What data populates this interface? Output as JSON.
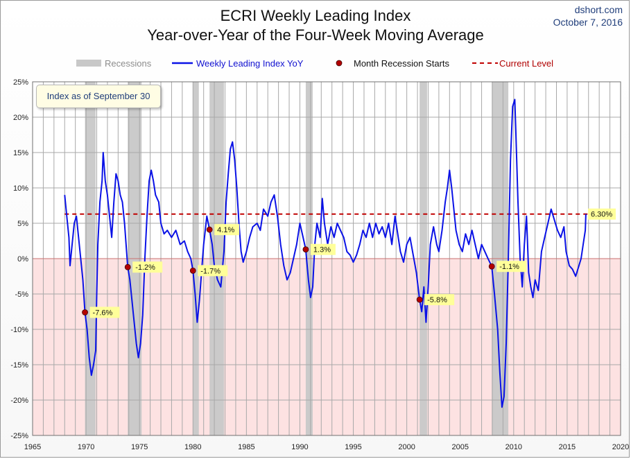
{
  "header": {
    "title_line1": "ECRI Weekly Leading Index",
    "title_line2": "Year-over-Year of the Four-Week Moving Average",
    "source_site": "dshort.com",
    "source_date": "October 7, 2016"
  },
  "info_box": "Index as of September 30",
  "colors": {
    "line": "#0a12e6",
    "recession": "#c8c8c8",
    "negative_zone": "#fde2e2",
    "marker": "#b30000",
    "current_level": "#c00000",
    "label_bg": "#ffff99"
  },
  "chart_data": {
    "type": "line",
    "title": "ECRI Weekly Leading Index — Year-over-Year of the Four-Week Moving Average",
    "xlim": [
      1965,
      2020
    ],
    "ylim": [
      -25,
      25
    ],
    "x_ticks": [
      "1965",
      "1970",
      "1975",
      "1980",
      "1985",
      "1990",
      "1995",
      "2000",
      "2005",
      "2010",
      "2015",
      "2020"
    ],
    "y_ticks": [
      "25%",
      "20%",
      "15%",
      "10%",
      "5%",
      "0%",
      "-5%",
      "-10%",
      "-15%",
      "-20%",
      "-25%"
    ],
    "grid": true,
    "legend": {
      "position": "top",
      "recessions": "Recessions",
      "series": "Weekly Leading Index YoY",
      "markers": "Month Recession Starts",
      "current": "Current Level"
    },
    "recessions": [
      [
        1969.9,
        1970.9
      ],
      [
        1973.9,
        1975.2
      ],
      [
        1980.0,
        1980.55
      ],
      [
        1981.55,
        1982.9
      ],
      [
        1990.55,
        1991.2
      ],
      [
        2001.2,
        2001.9
      ],
      [
        2007.95,
        2009.5
      ]
    ],
    "recession_starts": [
      {
        "x": 1969.9,
        "y": -7.6,
        "label": "-7.6%"
      },
      {
        "x": 1973.9,
        "y": -1.2,
        "label": "-1.2%"
      },
      {
        "x": 1980.0,
        "y": -1.7,
        "label": "-1.7%"
      },
      {
        "x": 1981.55,
        "y": 4.1,
        "label": "4.1%"
      },
      {
        "x": 1990.55,
        "y": 1.3,
        "label": "1.3%"
      },
      {
        "x": 2001.2,
        "y": -5.8,
        "label": "-5.8%"
      },
      {
        "x": 2007.95,
        "y": -1.1,
        "label": "-1.1%"
      }
    ],
    "current_level": {
      "value": 6.3,
      "label": "6.30%"
    },
    "series": [
      {
        "name": "Weekly Leading Index YoY",
        "points": [
          [
            1968.0,
            9.0
          ],
          [
            1968.2,
            6.0
          ],
          [
            1968.4,
            3.0
          ],
          [
            1968.5,
            -1.0
          ],
          [
            1968.7,
            2.0
          ],
          [
            1968.9,
            5.0
          ],
          [
            1969.1,
            6.0
          ],
          [
            1969.3,
            3.0
          ],
          [
            1969.5,
            0.0
          ],
          [
            1969.7,
            -3.0
          ],
          [
            1969.9,
            -7.6
          ],
          [
            1970.1,
            -10.0
          ],
          [
            1970.3,
            -14.0
          ],
          [
            1970.5,
            -16.5
          ],
          [
            1970.7,
            -15.0
          ],
          [
            1970.9,
            -13.0
          ],
          [
            1971.0,
            -5.0
          ],
          [
            1971.1,
            2.0
          ],
          [
            1971.3,
            8.0
          ],
          [
            1971.5,
            11.0
          ],
          [
            1971.6,
            15.0
          ],
          [
            1971.8,
            11.0
          ],
          [
            1972.0,
            9.0
          ],
          [
            1972.2,
            6.0
          ],
          [
            1972.4,
            3.0
          ],
          [
            1972.6,
            8.0
          ],
          [
            1972.8,
            12.0
          ],
          [
            1973.0,
            11.0
          ],
          [
            1973.2,
            9.0
          ],
          [
            1973.4,
            8.0
          ],
          [
            1973.6,
            5.0
          ],
          [
            1973.9,
            -1.2
          ],
          [
            1974.1,
            -3.0
          ],
          [
            1974.3,
            -6.0
          ],
          [
            1974.5,
            -9.0
          ],
          [
            1974.7,
            -12.0
          ],
          [
            1974.9,
            -14.0
          ],
          [
            1975.1,
            -12.0
          ],
          [
            1975.3,
            -8.0
          ],
          [
            1975.5,
            0.0
          ],
          [
            1975.7,
            6.0
          ],
          [
            1975.9,
            11.0
          ],
          [
            1976.1,
            12.5
          ],
          [
            1976.3,
            11.0
          ],
          [
            1976.5,
            9.0
          ],
          [
            1976.8,
            8.0
          ],
          [
            1977.0,
            5.0
          ],
          [
            1977.3,
            3.5
          ],
          [
            1977.6,
            4.0
          ],
          [
            1978.0,
            3.0
          ],
          [
            1978.4,
            4.0
          ],
          [
            1978.8,
            2.0
          ],
          [
            1979.2,
            2.5
          ],
          [
            1979.5,
            1.0
          ],
          [
            1979.8,
            0.0
          ],
          [
            1980.0,
            -1.7
          ],
          [
            1980.2,
            -5.0
          ],
          [
            1980.4,
            -9.0
          ],
          [
            1980.6,
            -6.0
          ],
          [
            1980.8,
            -2.0
          ],
          [
            1981.0,
            2.0
          ],
          [
            1981.3,
            6.0
          ],
          [
            1981.55,
            4.1
          ],
          [
            1981.8,
            2.0
          ],
          [
            1982.0,
            -1.0
          ],
          [
            1982.3,
            -3.0
          ],
          [
            1982.6,
            -4.0
          ],
          [
            1982.9,
            1.0
          ],
          [
            1983.1,
            8.0
          ],
          [
            1983.3,
            12.0
          ],
          [
            1983.5,
            15.5
          ],
          [
            1983.7,
            16.5
          ],
          [
            1983.9,
            14.0
          ],
          [
            1984.1,
            10.0
          ],
          [
            1984.3,
            5.0
          ],
          [
            1984.5,
            1.0
          ],
          [
            1984.7,
            -0.5
          ],
          [
            1985.0,
            1.0
          ],
          [
            1985.3,
            3.0
          ],
          [
            1985.6,
            4.5
          ],
          [
            1986.0,
            5.0
          ],
          [
            1986.3,
            4.0
          ],
          [
            1986.6,
            7.0
          ],
          [
            1987.0,
            6.0
          ],
          [
            1987.3,
            8.0
          ],
          [
            1987.6,
            9.0
          ],
          [
            1987.9,
            6.0
          ],
          [
            1988.2,
            2.0
          ],
          [
            1988.5,
            -1.0
          ],
          [
            1988.8,
            -3.0
          ],
          [
            1989.1,
            -2.0
          ],
          [
            1989.4,
            0.0
          ],
          [
            1989.7,
            2.0
          ],
          [
            1990.0,
            5.0
          ],
          [
            1990.3,
            3.0
          ],
          [
            1990.55,
            1.3
          ],
          [
            1990.8,
            -3.0
          ],
          [
            1991.0,
            -5.5
          ],
          [
            1991.2,
            -4.0
          ],
          [
            1991.4,
            2.0
          ],
          [
            1991.6,
            5.0
          ],
          [
            1991.9,
            3.0
          ],
          [
            1992.1,
            8.5
          ],
          [
            1992.3,
            5.0
          ],
          [
            1992.6,
            2.0
          ],
          [
            1992.9,
            4.5
          ],
          [
            1993.2,
            3.0
          ],
          [
            1993.5,
            5.0
          ],
          [
            1993.8,
            4.0
          ],
          [
            1994.1,
            3.0
          ],
          [
            1994.4,
            1.0
          ],
          [
            1994.7,
            0.5
          ],
          [
            1995.0,
            -0.5
          ],
          [
            1995.3,
            0.5
          ],
          [
            1995.6,
            2.0
          ],
          [
            1995.9,
            4.0
          ],
          [
            1996.2,
            3.0
          ],
          [
            1996.5,
            5.0
          ],
          [
            1996.8,
            3.0
          ],
          [
            1997.1,
            5.0
          ],
          [
            1997.4,
            3.5
          ],
          [
            1997.7,
            4.5
          ],
          [
            1998.0,
            3.0
          ],
          [
            1998.3,
            5.0
          ],
          [
            1998.6,
            2.0
          ],
          [
            1998.9,
            6.0
          ],
          [
            1999.1,
            4.0
          ],
          [
            1999.4,
            1.0
          ],
          [
            1999.7,
            -0.5
          ],
          [
            2000.0,
            2.0
          ],
          [
            2000.3,
            3.0
          ],
          [
            2000.6,
            0.5
          ],
          [
            2000.9,
            -2.0
          ],
          [
            2001.2,
            -5.8
          ],
          [
            2001.4,
            -7.5
          ],
          [
            2001.6,
            -4.0
          ],
          [
            2001.8,
            -9.0
          ],
          [
            2002.0,
            -4.0
          ],
          [
            2002.2,
            2.0
          ],
          [
            2002.5,
            4.5
          ],
          [
            2002.8,
            2.0
          ],
          [
            2003.0,
            1.0
          ],
          [
            2003.3,
            4.0
          ],
          [
            2003.6,
            8.0
          ],
          [
            2003.8,
            10.0
          ],
          [
            2004.0,
            12.5
          ],
          [
            2004.2,
            10.0
          ],
          [
            2004.4,
            7.0
          ],
          [
            2004.6,
            4.0
          ],
          [
            2004.9,
            2.0
          ],
          [
            2005.2,
            1.0
          ],
          [
            2005.5,
            3.5
          ],
          [
            2005.8,
            2.0
          ],
          [
            2006.1,
            4.0
          ],
          [
            2006.4,
            2.0
          ],
          [
            2006.7,
            0.0
          ],
          [
            2007.0,
            2.0
          ],
          [
            2007.3,
            1.0
          ],
          [
            2007.6,
            0.0
          ],
          [
            2007.95,
            -1.1
          ],
          [
            2008.2,
            -5.0
          ],
          [
            2008.5,
            -10.0
          ],
          [
            2008.7,
            -16.0
          ],
          [
            2008.9,
            -21.0
          ],
          [
            2009.1,
            -19.5
          ],
          [
            2009.3,
            -12.0
          ],
          [
            2009.5,
            0.0
          ],
          [
            2009.7,
            14.0
          ],
          [
            2009.9,
            21.5
          ],
          [
            2010.1,
            22.5
          ],
          [
            2010.2,
            18.0
          ],
          [
            2010.4,
            8.0
          ],
          [
            2010.6,
            0.0
          ],
          [
            2010.8,
            -4.0
          ],
          [
            2011.0,
            2.0
          ],
          [
            2011.2,
            6.0
          ],
          [
            2011.4,
            -2.0
          ],
          [
            2011.6,
            -4.0
          ],
          [
            2011.8,
            -5.5
          ],
          [
            2012.0,
            -3.0
          ],
          [
            2012.3,
            -4.5
          ],
          [
            2012.6,
            1.0
          ],
          [
            2012.9,
            3.0
          ],
          [
            2013.2,
            5.0
          ],
          [
            2013.5,
            7.0
          ],
          [
            2013.8,
            5.5
          ],
          [
            2014.1,
            4.0
          ],
          [
            2014.4,
            3.0
          ],
          [
            2014.7,
            4.5
          ],
          [
            2014.9,
            1.0
          ],
          [
            2015.2,
            -1.0
          ],
          [
            2015.5,
            -1.5
          ],
          [
            2015.8,
            -2.5
          ],
          [
            2016.1,
            -1.0
          ],
          [
            2016.3,
            0.0
          ],
          [
            2016.5,
            2.0
          ],
          [
            2016.7,
            4.0
          ],
          [
            2016.75,
            6.3
          ]
        ]
      }
    ]
  }
}
